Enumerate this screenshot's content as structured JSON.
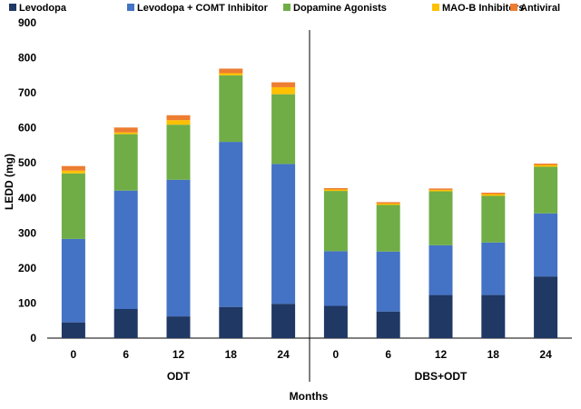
{
  "chart_data": {
    "type": "bar",
    "stacked": true,
    "categories": [
      "0",
      "6",
      "12",
      "18",
      "24",
      "0",
      "6",
      "12",
      "18",
      "24"
    ],
    "groups": [
      {
        "label": "ODT",
        "categories": [
          "0",
          "6",
          "12",
          "18",
          "24"
        ]
      },
      {
        "label": "DBS+ODT",
        "categories": [
          "0",
          "6",
          "12",
          "18",
          "24"
        ]
      }
    ],
    "series": [
      {
        "name": "Levodopa",
        "color": "#1f3864",
        "values": [
          45,
          83,
          62,
          89,
          98,
          92,
          76,
          123,
          123,
          176
        ]
      },
      {
        "name": "Levodopa + COMT Inhibitor",
        "color": "#4472c4",
        "values": [
          238,
          338,
          390,
          471,
          399,
          156,
          171,
          142,
          150,
          180
        ]
      },
      {
        "name": "Dopamine Agonists",
        "color": "#70ad47",
        "values": [
          187,
          161,
          157,
          190,
          199,
          172,
          133,
          154,
          133,
          133
        ]
      },
      {
        "name": "MAO-B Inhibitors",
        "color": "#ffc000",
        "values": [
          8,
          5,
          13,
          6,
          20,
          4,
          4,
          4,
          5,
          5
        ]
      },
      {
        "name": "Antiviral",
        "color": "#ed7d31",
        "values": [
          13,
          14,
          14,
          13,
          14,
          4,
          4,
          4,
          4,
          4
        ]
      }
    ],
    "title": "",
    "xlabel": "Months",
    "ylabel": "LEDD (mg)",
    "ylim": [
      0,
      900
    ],
    "yticks": [
      "0",
      "100",
      "200",
      "300",
      "400",
      "500",
      "600",
      "700",
      "800",
      "900"
    ],
    "grid": false,
    "legend_position": "top"
  }
}
